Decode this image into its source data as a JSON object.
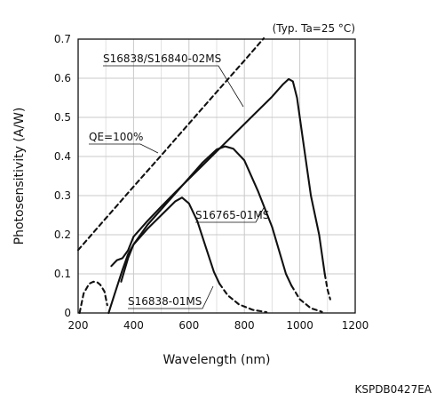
{
  "chart_data": {
    "type": "line",
    "title": "",
    "condition_note": "(Typ. Ta=25 °C)",
    "xlabel": "Wavelength (nm)",
    "ylabel": "Photosensitivity (A/W)",
    "xlim": [
      200,
      1200
    ],
    "ylim": [
      0,
      0.7
    ],
    "x_ticks": [
      "200",
      "400",
      "600",
      "800",
      "1000",
      "1200"
    ],
    "y_ticks": [
      "0",
      "0.1",
      "0.2",
      "0.3",
      "0.4",
      "0.5",
      "0.6",
      "0.7"
    ],
    "grid": true,
    "series": [
      {
        "name": "S16838/S16840-02MS",
        "segments": [
          {
            "style": "solid",
            "points": [
              [
                320,
                0.12
              ],
              [
                340,
                0.135
              ],
              [
                360,
                0.14
              ],
              [
                380,
                0.16
              ],
              [
                400,
                0.195
              ],
              [
                450,
                0.235
              ],
              [
                500,
                0.272
              ],
              [
                550,
                0.308
              ],
              [
                600,
                0.343
              ],
              [
                650,
                0.378
              ],
              [
                700,
                0.413
              ],
              [
                750,
                0.448
              ],
              [
                800,
                0.483
              ],
              [
                850,
                0.518
              ],
              [
                900,
                0.553
              ],
              [
                940,
                0.585
              ],
              [
                960,
                0.598
              ],
              [
                975,
                0.592
              ],
              [
                990,
                0.55
              ],
              [
                1010,
                0.45
              ],
              [
                1040,
                0.3
              ],
              [
                1070,
                0.2
              ],
              [
                1090,
                0.1
              ]
            ]
          },
          {
            "style": "dashed",
            "points": [
              [
                1090,
                0.1
              ],
              [
                1100,
                0.06
              ],
              [
                1110,
                0.035
              ]
            ]
          }
        ]
      },
      {
        "name": "S16765-01MS",
        "segments": [
          {
            "style": "solid",
            "points": [
              [
                355,
                0.08
              ],
              [
                380,
                0.14
              ],
              [
                400,
                0.175
              ],
              [
                450,
                0.225
              ],
              [
                500,
                0.265
              ],
              [
                550,
                0.305
              ],
              [
                600,
                0.345
              ],
              [
                650,
                0.385
              ],
              [
                700,
                0.418
              ],
              [
                730,
                0.426
              ],
              [
                760,
                0.42
              ],
              [
                800,
                0.39
              ],
              [
                850,
                0.31
              ],
              [
                900,
                0.22
              ],
              [
                950,
                0.1
              ],
              [
                970,
                0.07
              ]
            ]
          },
          {
            "style": "dashed",
            "points": [
              [
                970,
                0.07
              ],
              [
                1000,
                0.035
              ],
              [
                1040,
                0.012
              ],
              [
                1080,
                0.003
              ]
            ]
          }
        ]
      },
      {
        "name": "S16838-01MS",
        "segments": [
          {
            "style": "dashed",
            "points": [
              [
                205,
                0.0
              ],
              [
                220,
                0.05
              ],
              [
                240,
                0.075
              ],
              [
                255,
                0.08
              ],
              [
                270,
                0.078
              ],
              [
                280,
                0.072
              ],
              [
                295,
                0.055
              ],
              [
                305,
                0.02
              ]
            ]
          },
          {
            "style": "solid",
            "points": [
              [
                310,
                0.0
              ],
              [
                330,
                0.045
              ],
              [
                360,
                0.11
              ],
              [
                380,
                0.15
              ],
              [
                400,
                0.175
              ],
              [
                450,
                0.215
              ],
              [
                500,
                0.25
              ],
              [
                550,
                0.285
              ],
              [
                575,
                0.295
              ],
              [
                600,
                0.28
              ],
              [
                630,
                0.235
              ],
              [
                660,
                0.17
              ],
              [
                690,
                0.105
              ],
              [
                710,
                0.075
              ]
            ]
          },
          {
            "style": "dashed",
            "points": [
              [
                710,
                0.075
              ],
              [
                740,
                0.045
              ],
              [
                780,
                0.022
              ],
              [
                830,
                0.008
              ],
              [
                880,
                0.002
              ]
            ]
          }
        ]
      },
      {
        "name": "QE=100%",
        "segments": [
          {
            "style": "dashed",
            "points": [
              [
                200,
                0.161
              ],
              [
                300,
                0.242
              ],
              [
                400,
                0.323
              ],
              [
                500,
                0.403
              ],
              [
                600,
                0.484
              ],
              [
                700,
                0.565
              ],
              [
                800,
                0.645
              ],
              [
                870,
                0.702
              ]
            ]
          }
        ]
      }
    ],
    "annotations": [
      {
        "text": "S16838/S16840-02MS",
        "at": [
          850,
          0.5
        ]
      },
      {
        "text": "QE=100%",
        "at": [
          480,
          0.38
        ]
      },
      {
        "text": "S16765-01MS",
        "at": [
          830,
          0.343
        ]
      },
      {
        "text": "S16838-01MS",
        "at": [
          635,
          0.07
        ]
      }
    ]
  },
  "figure_code": "KSPDB0427EA"
}
